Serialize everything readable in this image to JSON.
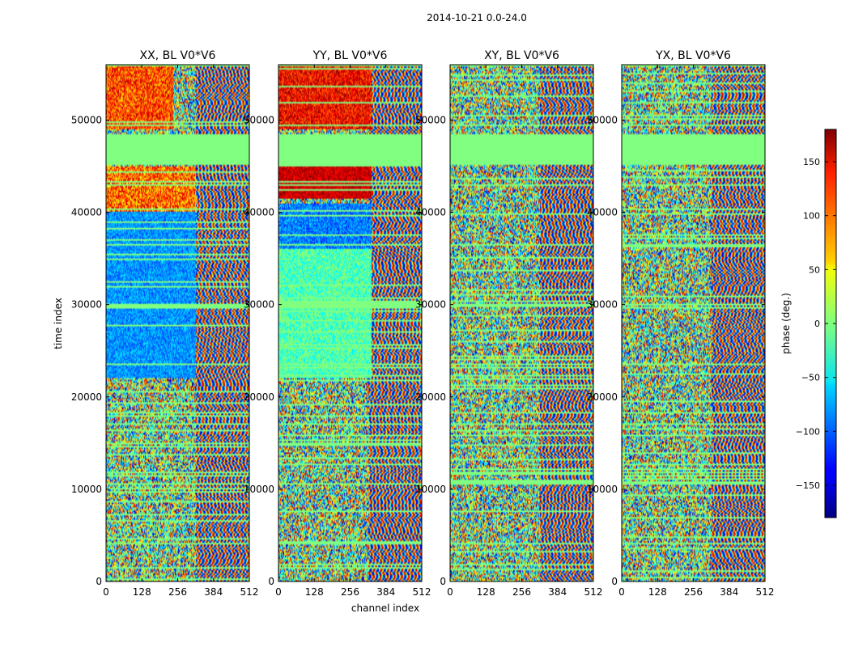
{
  "figure": {
    "suptitle": "2014-10-21 0.0-24.0",
    "xlabel": "channel index",
    "ylabel": "time index"
  },
  "chart_data": {
    "type": "heatmap",
    "colormap": "jet",
    "x_range": [
      0,
      512
    ],
    "y_range": [
      0,
      56000
    ],
    "x_ticks": [
      0,
      128,
      256,
      384,
      512
    ],
    "y_ticks": [
      0,
      10000,
      20000,
      30000,
      40000,
      50000
    ],
    "flagged_time_range": [
      45100,
      48500
    ],
    "flagged_value_deg": 0,
    "panels": [
      {
        "title": "XX, BL V0*V6",
        "pol": "XX"
      },
      {
        "title": "YY, BL V0*V6",
        "pol": "YY"
      },
      {
        "title": "XY, BL V0*V6",
        "pol": "XY"
      },
      {
        "title": "YX, BL V0*V6",
        "pol": "YX"
      }
    ],
    "colorbar": {
      "label": "phase (deg.)",
      "range": [
        -180,
        180
      ],
      "ticks": [
        -150,
        -100,
        -50,
        0,
        50,
        100,
        150
      ]
    }
  },
  "colors": {
    "flagged": "#7fff7f",
    "frame": "#000000"
  }
}
